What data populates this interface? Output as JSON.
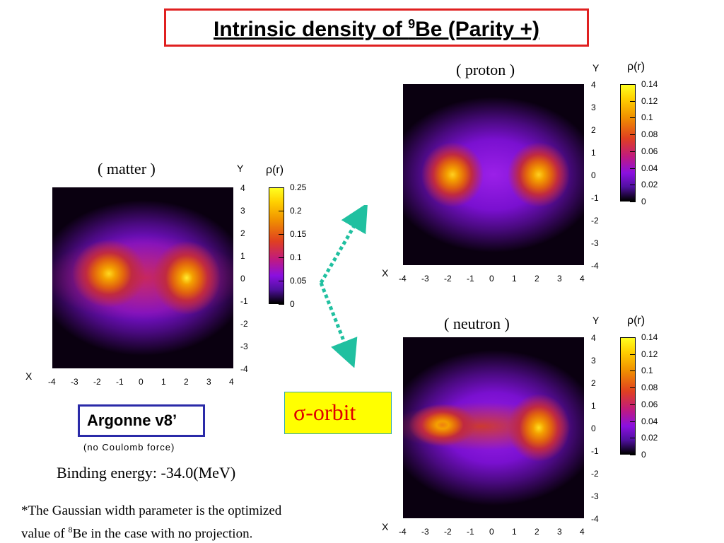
{
  "title": {
    "pre": "Intrinsic density of ",
    "sup": "9",
    "post": "Be (Parity +)"
  },
  "panels": {
    "matter": {
      "label": "( matter )",
      "cbar_label": "ρ(r)",
      "cbar_ticks": [
        "0.25",
        "0.2",
        "0.15",
        "0.1",
        "0.05",
        "0"
      ]
    },
    "proton": {
      "label": "( proton )",
      "cbar_label": "ρ(r)",
      "cbar_ticks": [
        "0.14",
        "0.12",
        "0.1",
        "0.08",
        "0.06",
        "0.04",
        "0.02",
        "0"
      ]
    },
    "neutron": {
      "label": "( neutron )",
      "cbar_label": "ρ(r)",
      "cbar_ticks": [
        "0.14",
        "0.12",
        "0.1",
        "0.08",
        "0.06",
        "0.04",
        "0.02",
        "0"
      ]
    }
  },
  "axes": {
    "x_name": "X",
    "y_name": "Y",
    "x_ticks": [
      "-4",
      "-3",
      "-2",
      "-1",
      "0",
      "1",
      "2",
      "3",
      "4"
    ],
    "y_ticks": [
      "4",
      "3",
      "2",
      "1",
      "0",
      "-1",
      "-2",
      "-3",
      "-4"
    ]
  },
  "potential": {
    "name": "Argonne v8’",
    "note": "(no Coulomb force)"
  },
  "sigma_label": "σ-orbit",
  "binding": "Binding energy: -34.0(MeV)",
  "footnote": {
    "line1": "*The Gaussian width parameter is the optimized",
    "line2_pre": "value of ",
    "line2_sup": "8",
    "line2_post": "Be in the case with no projection."
  },
  "colors": {
    "title_border": "#e02020",
    "argonne_border": "#2a2aa8",
    "arrow": "#20c0a0",
    "sigma_bg": "#ffff00",
    "sigma_text": "#e00000"
  }
}
